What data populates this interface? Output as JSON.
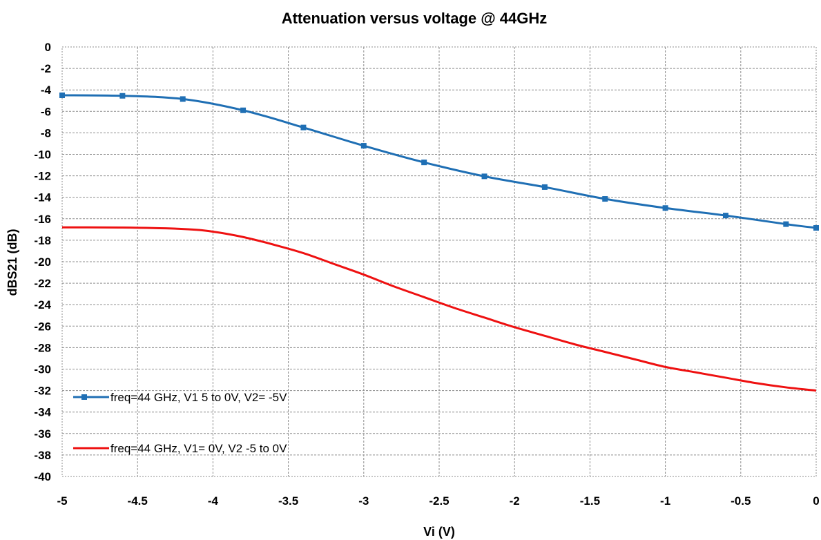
{
  "chart_data": {
    "type": "line",
    "title": "Attenuation versus voltage @ 44GHz",
    "xlabel": "Vi (V)",
    "ylabel": "dBS21 (dB)",
    "xlim": [
      -5,
      0
    ],
    "ylim": [
      -40,
      0
    ],
    "xticks": [
      "-5",
      "-4.5",
      "-4",
      "-3.5",
      "-3",
      "-2.5",
      "-2",
      "-1.5",
      "-1",
      "-0.5",
      "0"
    ],
    "yticks": [
      "0",
      "-2",
      "-4",
      "-6",
      "-8",
      "-10",
      "-12",
      "-14",
      "-16",
      "-18",
      "-20",
      "-22",
      "-24",
      "-26",
      "-28",
      "-30",
      "-32",
      "-34",
      "-36",
      "-38",
      "-40"
    ],
    "grid": true,
    "legend_position": "bottom-left",
    "series": [
      {
        "name": "freq=44 GHz,  V1 5 to 0V,  V2= -5V",
        "color": "#1f6fb4",
        "marker": "square",
        "x": [
          -5,
          -4.6,
          -4.2,
          -3.8,
          -3.4,
          -3.0,
          -2.6,
          -2.2,
          -1.8,
          -1.4,
          -1.0,
          -0.6,
          -0.2,
          0
        ],
        "y": [
          -4.5,
          -4.55,
          -4.85,
          -5.9,
          -7.5,
          -9.2,
          -10.75,
          -12.05,
          -13.05,
          -14.15,
          -15.0,
          -15.7,
          -16.5,
          -16.85
        ]
      },
      {
        "name": "freq=44 GHz,  V1= 0V,  V2 -5 to 0V",
        "color": "#ee1111",
        "marker": "none",
        "x": [
          -5,
          -4.6,
          -4.2,
          -4.0,
          -3.8,
          -3.6,
          -3.4,
          -3.2,
          -3.0,
          -2.8,
          -2.6,
          -2.4,
          -2.2,
          -2.0,
          -1.8,
          -1.6,
          -1.4,
          -1.2,
          -1.0,
          -0.8,
          -0.6,
          -0.4,
          -0.2,
          0
        ],
        "y": [
          -16.8,
          -16.82,
          -16.95,
          -17.2,
          -17.7,
          -18.4,
          -19.2,
          -20.2,
          -21.2,
          -22.3,
          -23.3,
          -24.3,
          -25.2,
          -26.1,
          -26.9,
          -27.7,
          -28.4,
          -29.1,
          -29.8,
          -30.3,
          -30.8,
          -31.3,
          -31.7,
          -32.0
        ]
      }
    ]
  }
}
